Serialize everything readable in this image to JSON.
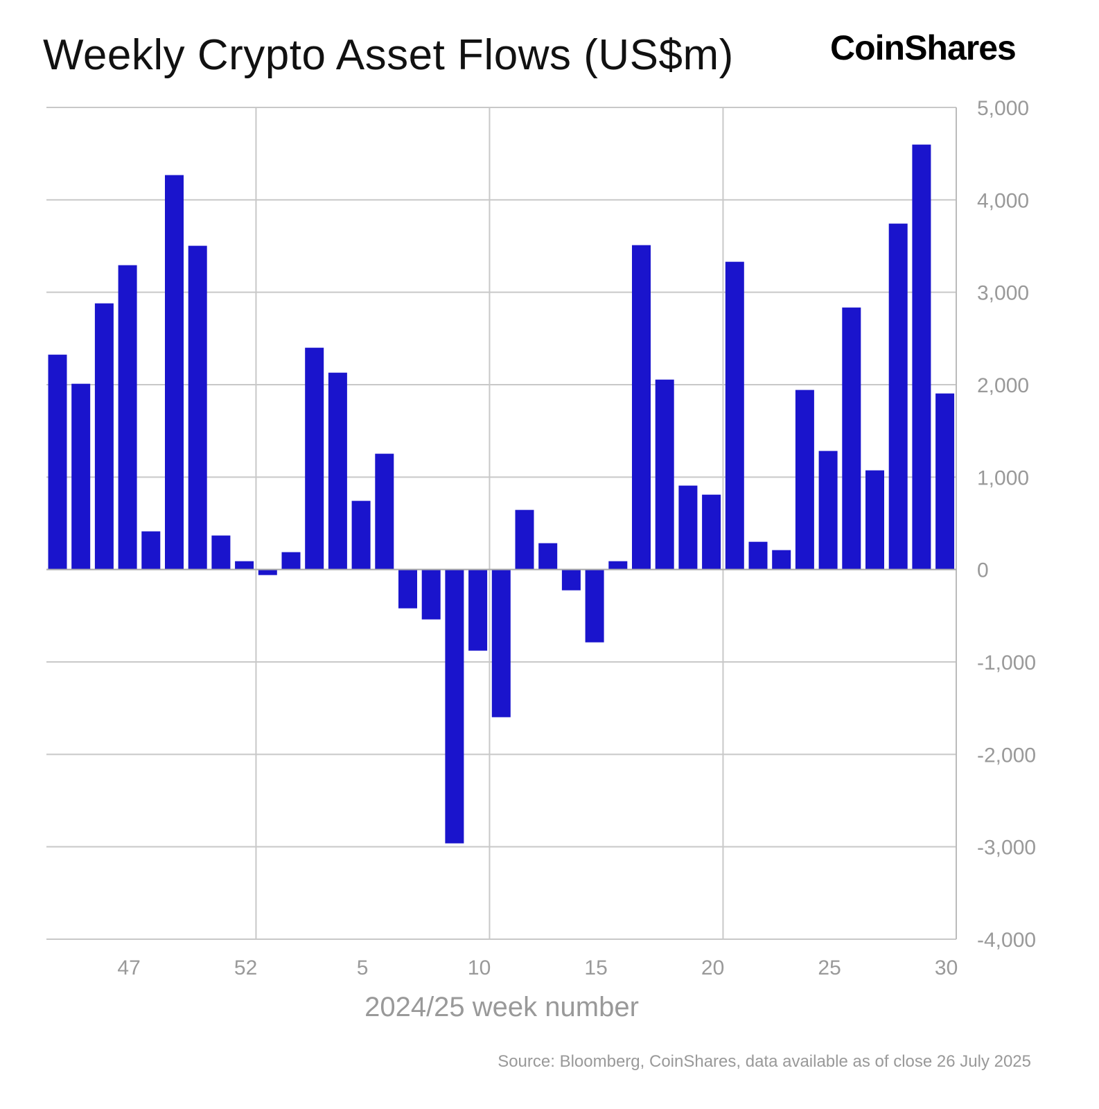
{
  "chart_data": {
    "type": "bar",
    "title": "Weekly Crypto Asset Flows (US$m)",
    "xlabel": "2024/25 week number",
    "ylabel": "",
    "ylim": [
      -4000,
      5000
    ],
    "yticks": [
      5000,
      4000,
      3000,
      2000,
      1000,
      0,
      -1000,
      -2000,
      -3000,
      -4000
    ],
    "ytick_labels": [
      "5,000",
      "4,000",
      "3,000",
      "2,000",
      "1,000",
      "0",
      "-1,000",
      "-2,000",
      "-3,000",
      "-4,000"
    ],
    "y_axis_side": "right",
    "grid": true,
    "categories": [
      44,
      45,
      46,
      47,
      48,
      49,
      50,
      51,
      52,
      1,
      2,
      3,
      4,
      5,
      6,
      7,
      8,
      9,
      10,
      11,
      12,
      13,
      14,
      15,
      16,
      17,
      18,
      19,
      20,
      21,
      22,
      23,
      24,
      25,
      26,
      27,
      28,
      29,
      30
    ],
    "xtick_labels": [
      "47",
      "52",
      "5",
      "10",
      "15",
      "20",
      "25",
      "30"
    ],
    "values": [
      2325,
      2010,
      2880,
      3293,
      413,
      4268,
      3503,
      368,
      90,
      -60,
      188,
      2400,
      2130,
      743,
      1253,
      -420,
      -540,
      -2963,
      -878,
      -1598,
      645,
      285,
      -225,
      -788,
      90,
      3510,
      2055,
      908,
      810,
      3330,
      300,
      210,
      1943,
      1283,
      2835,
      1073,
      3743,
      4598,
      1905
    ],
    "bar_color": "#1a14cc"
  },
  "brand": "CoinShares",
  "source": "Source: Bloomberg, CoinShares, data available as of close 26 July 2025"
}
